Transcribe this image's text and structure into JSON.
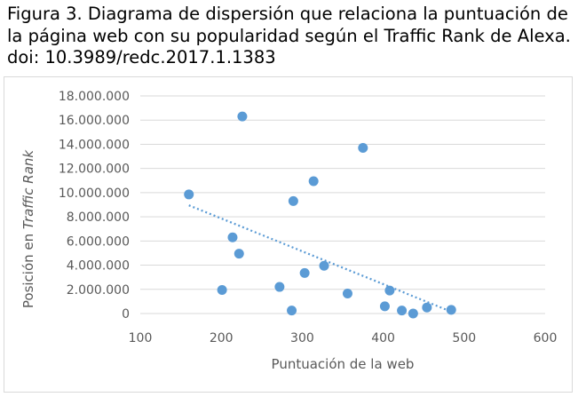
{
  "caption": "Figura 3. Diagrama de dispersión que relaciona la puntuación de la página web con su popularidad según el Traffic Rank de Alexa. doi: 10.3989/redc.2017.1.1383",
  "chart_data": {
    "type": "scatter",
    "xlabel": "Puntuación de la web",
    "ylabel_prefix": "Posición en ",
    "ylabel_italic": "Traffic Rank",
    "xlim": [
      100,
      600
    ],
    "ylim": [
      0,
      18000000
    ],
    "x_ticks": [
      "100",
      "200",
      "300",
      "400",
      "500",
      "600"
    ],
    "y_ticks": [
      "0",
      "2.000.000",
      "4.000.000",
      "6.000.000",
      "8.000.000",
      "10.000.000",
      "12.000.000",
      "14.000.000",
      "16.000.000",
      "18.000.000"
    ],
    "grid": true,
    "legend": "none",
    "points": [
      {
        "x": 160,
        "y": 9850000
      },
      {
        "x": 201,
        "y": 1950000
      },
      {
        "x": 214,
        "y": 6300000
      },
      {
        "x": 222,
        "y": 4950000
      },
      {
        "x": 226,
        "y": 16300000
      },
      {
        "x": 272,
        "y": 2200000
      },
      {
        "x": 287,
        "y": 250000
      },
      {
        "x": 289,
        "y": 9300000
      },
      {
        "x": 303,
        "y": 3350000
      },
      {
        "x": 314,
        "y": 10950000
      },
      {
        "x": 327,
        "y": 3950000
      },
      {
        "x": 356,
        "y": 1650000
      },
      {
        "x": 375,
        "y": 13700000
      },
      {
        "x": 402,
        "y": 600000
      },
      {
        "x": 408,
        "y": 1900000
      },
      {
        "x": 423,
        "y": 250000
      },
      {
        "x": 437,
        "y": 0
      },
      {
        "x": 454,
        "y": 500000
      },
      {
        "x": 484,
        "y": 300000
      }
    ],
    "trendline": {
      "style": "dotted",
      "x": [
        160,
        484
      ],
      "y": [
        8950000,
        150000
      ]
    },
    "colors": {
      "marker": "#5b9bd5",
      "trendline": "#5b9bd5",
      "grid": "#d9d9d9",
      "text": "#595959"
    }
  }
}
